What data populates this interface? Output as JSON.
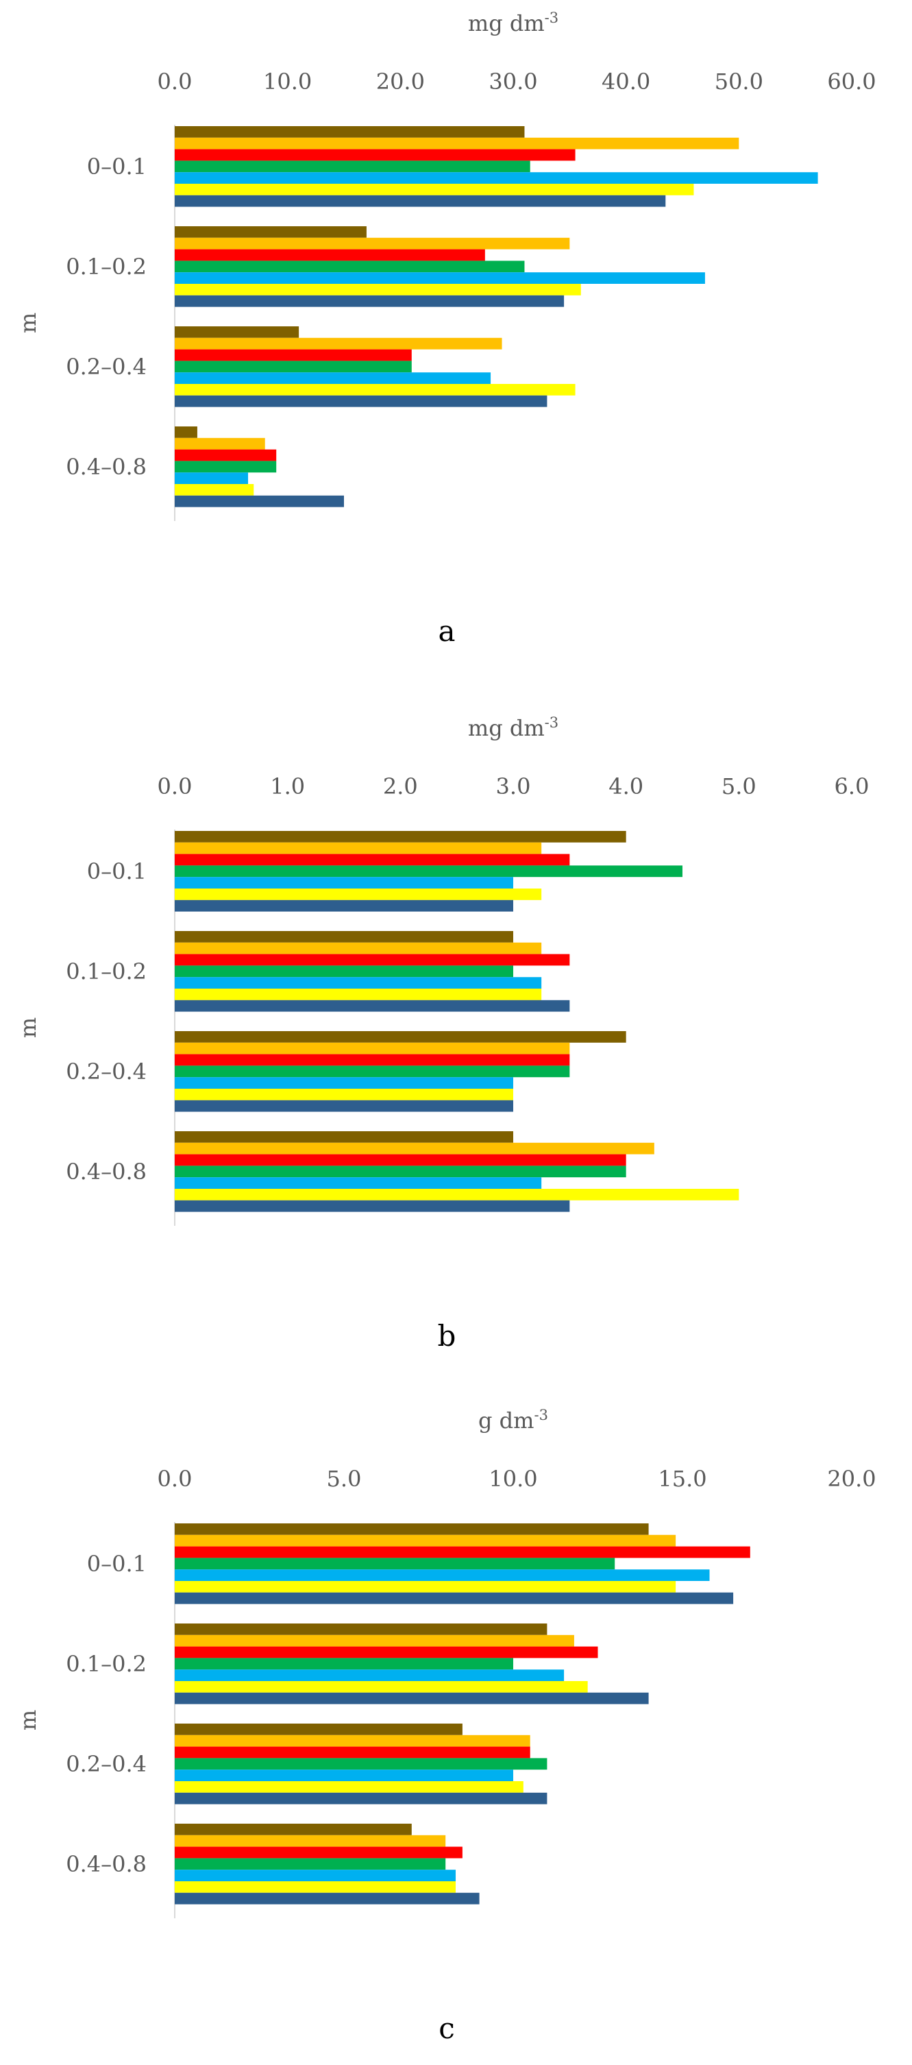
{
  "series_colors": [
    "#7F6000",
    "#FFC000",
    "#FF0000",
    "#00B050",
    "#00B0F0",
    "#FFFF00",
    "#2E5E8E"
  ],
  "chart_data": [
    {
      "type": "bar",
      "orientation": "horizontal",
      "panel_label": "a",
      "unit_label": "mg dm",
      "unit_sup": "-3",
      "ylabel": "m",
      "xlim": [
        0,
        60
      ],
      "ticks": [
        "0.0",
        "10.0",
        "20.0",
        "30.0",
        "40.0",
        "50.0",
        "60.0"
      ],
      "categories": [
        "0–0.1",
        "0.1–0.2",
        "0.2–0.4",
        "0.4–0.8"
      ],
      "series": [
        {
          "values": [
            31.0,
            17.0,
            11.0,
            2.0
          ]
        },
        {
          "values": [
            50.0,
            35.0,
            29.0,
            8.0
          ]
        },
        {
          "values": [
            35.5,
            27.5,
            21.0,
            9.0
          ]
        },
        {
          "values": [
            31.5,
            31.0,
            21.0,
            9.0
          ]
        },
        {
          "values": [
            57.0,
            47.0,
            28.0,
            6.5
          ]
        },
        {
          "values": [
            46.0,
            36.0,
            35.5,
            7.0
          ]
        },
        {
          "values": [
            43.5,
            34.5,
            33.0,
            15.0
          ]
        }
      ]
    },
    {
      "type": "bar",
      "orientation": "horizontal",
      "panel_label": "b",
      "unit_label": "mg dm",
      "unit_sup": "-3",
      "ylabel": "m",
      "xlim": [
        0,
        6
      ],
      "ticks": [
        "0.0",
        "1.0",
        "2.0",
        "3.0",
        "4.0",
        "5.0",
        "6.0"
      ],
      "categories": [
        "0–0.1",
        "0.1–0.2",
        "0.2–0.4",
        "0.4–0.8"
      ],
      "series": [
        {
          "values": [
            4.0,
            3.0,
            4.0,
            3.0
          ]
        },
        {
          "values": [
            3.25,
            3.25,
            3.5,
            4.25
          ]
        },
        {
          "values": [
            3.5,
            3.5,
            3.5,
            4.0
          ]
        },
        {
          "values": [
            4.5,
            3.0,
            3.5,
            4.0
          ]
        },
        {
          "values": [
            3.0,
            3.25,
            3.0,
            3.25
          ]
        },
        {
          "values": [
            3.25,
            3.25,
            3.0,
            5.0
          ]
        },
        {
          "values": [
            3.0,
            3.5,
            3.0,
            3.5
          ]
        }
      ]
    },
    {
      "type": "bar",
      "orientation": "horizontal",
      "panel_label": "c",
      "unit_label": "g dm",
      "unit_sup": "-3",
      "ylabel": "m",
      "xlim": [
        0,
        20
      ],
      "ticks": [
        "0.0",
        "5.0",
        "10.0",
        "15.0",
        "20.0"
      ],
      "categories": [
        "0–0.1",
        "0.1–0.2",
        "0.2–0.4",
        "0.4–0.8"
      ],
      "series": [
        {
          "values": [
            14.0,
            11.0,
            8.5,
            7.0
          ]
        },
        {
          "values": [
            14.8,
            11.8,
            10.5,
            8.0
          ]
        },
        {
          "values": [
            17.0,
            12.5,
            10.5,
            8.5
          ]
        },
        {
          "values": [
            13.0,
            10.0,
            11.0,
            8.0
          ]
        },
        {
          "values": [
            15.8,
            11.5,
            10.0,
            8.3
          ]
        },
        {
          "values": [
            14.8,
            12.2,
            10.3,
            8.3
          ]
        },
        {
          "values": [
            16.5,
            14.0,
            11.0,
            9.0
          ]
        }
      ]
    }
  ]
}
